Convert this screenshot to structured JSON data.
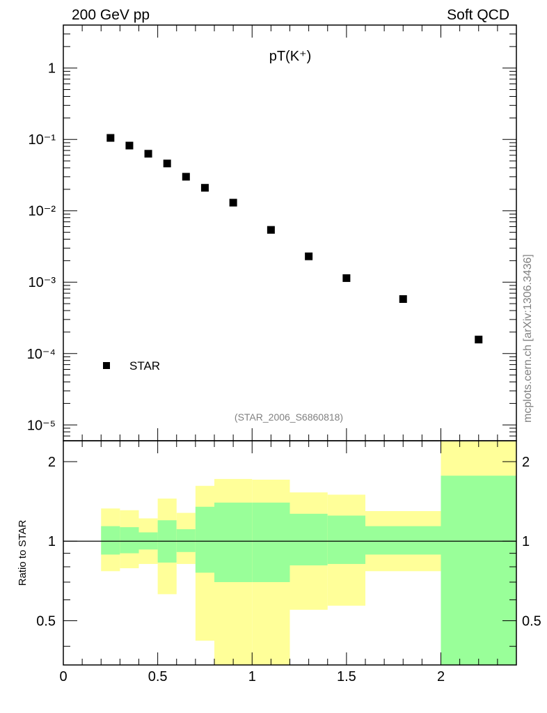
{
  "header": {
    "left": "200 GeV pp",
    "right": "Soft QCD"
  },
  "side_label": "mcplots.cern.ch [arXiv:1306.3436]",
  "chart_data": [
    {
      "type": "scatter",
      "title": "pT(K⁺)",
      "yscale": "log",
      "xlim": [
        0,
        2.4
      ],
      "ylim": [
        6e-06,
        4
      ],
      "y_ticks": [
        {
          "value": 1,
          "label": "1"
        },
        {
          "value": 0.1,
          "label": "10⁻¹"
        },
        {
          "value": 0.01,
          "label": "10⁻²"
        },
        {
          "value": 0.001,
          "label": "10⁻³"
        },
        {
          "value": 0.0001,
          "label": "10⁻⁴"
        },
        {
          "value": 1e-05,
          "label": "10⁻⁵"
        }
      ],
      "series": [
        {
          "name": "STAR",
          "x": [
            0.25,
            0.35,
            0.45,
            0.55,
            0.65,
            0.75,
            0.9,
            1.1,
            1.3,
            1.5,
            1.8,
            2.2
          ],
          "y": [
            0.105,
            0.082,
            0.063,
            0.046,
            0.03,
            0.021,
            0.013,
            0.0054,
            0.0023,
            0.00114,
            0.00058,
            0.000157
          ]
        }
      ],
      "legend": {
        "label": "STAR",
        "position": "bottom-left"
      },
      "annotation": "(STAR_2006_S6860818)"
    },
    {
      "type": "area",
      "ylabel": "Ratio to STAR",
      "yscale": "log",
      "xlim": [
        0,
        2.4
      ],
      "ylim": [
        0.34,
        2.4
      ],
      "x_ticks": [
        {
          "value": 0,
          "label": "0"
        },
        {
          "value": 0.5,
          "label": "0.5"
        },
        {
          "value": 1,
          "label": "1"
        },
        {
          "value": 1.5,
          "label": "1.5"
        },
        {
          "value": 2,
          "label": "2"
        }
      ],
      "y_ticks": [
        {
          "value": 0.5,
          "label": "0.5"
        },
        {
          "value": 1,
          "label": "1"
        },
        {
          "value": 2,
          "label": "2"
        }
      ],
      "reference_line": 1,
      "colors": {
        "outer_band": "#ffff99",
        "inner_band": "#99ff99",
        "line": "#000000"
      },
      "bins": [
        {
          "x0": 0.2,
          "x1": 0.3,
          "outer_lo": 0.77,
          "outer_hi": 1.33,
          "inner_lo": 0.89,
          "inner_hi": 1.14
        },
        {
          "x0": 0.3,
          "x1": 0.4,
          "outer_lo": 0.79,
          "outer_hi": 1.31,
          "inner_lo": 0.9,
          "inner_hi": 1.13
        },
        {
          "x0": 0.4,
          "x1": 0.5,
          "outer_lo": 0.82,
          "outer_hi": 1.22,
          "inner_lo": 0.93,
          "inner_hi": 1.08
        },
        {
          "x0": 0.5,
          "x1": 0.6,
          "outer_lo": 0.63,
          "outer_hi": 1.45,
          "inner_lo": 0.83,
          "inner_hi": 1.2
        },
        {
          "x0": 0.6,
          "x1": 0.7,
          "outer_lo": 0.82,
          "outer_hi": 1.28,
          "inner_lo": 0.91,
          "inner_hi": 1.11
        },
        {
          "x0": 0.7,
          "x1": 0.8,
          "outer_lo": 0.42,
          "outer_hi": 1.62,
          "inner_lo": 0.76,
          "inner_hi": 1.35
        },
        {
          "x0": 0.8,
          "x1": 1.0,
          "outer_lo": 0.3,
          "outer_hi": 1.72,
          "inner_lo": 0.7,
          "inner_hi": 1.4
        },
        {
          "x0": 1.0,
          "x1": 1.2,
          "outer_lo": 0.3,
          "outer_hi": 1.71,
          "inner_lo": 0.7,
          "inner_hi": 1.4
        },
        {
          "x0": 1.2,
          "x1": 1.4,
          "outer_lo": 0.55,
          "outer_hi": 1.53,
          "inner_lo": 0.81,
          "inner_hi": 1.27
        },
        {
          "x0": 1.4,
          "x1": 1.6,
          "outer_lo": 0.57,
          "outer_hi": 1.5,
          "inner_lo": 0.82,
          "inner_hi": 1.25
        },
        {
          "x0": 1.6,
          "x1": 2.0,
          "outer_lo": 0.77,
          "outer_hi": 1.3,
          "inner_lo": 0.89,
          "inner_hi": 1.14
        },
        {
          "x0": 2.0,
          "x1": 2.4,
          "outer_lo": 0.3,
          "outer_hi": 2.4,
          "inner_lo": 0.3,
          "inner_hi": 1.77
        }
      ]
    }
  ]
}
